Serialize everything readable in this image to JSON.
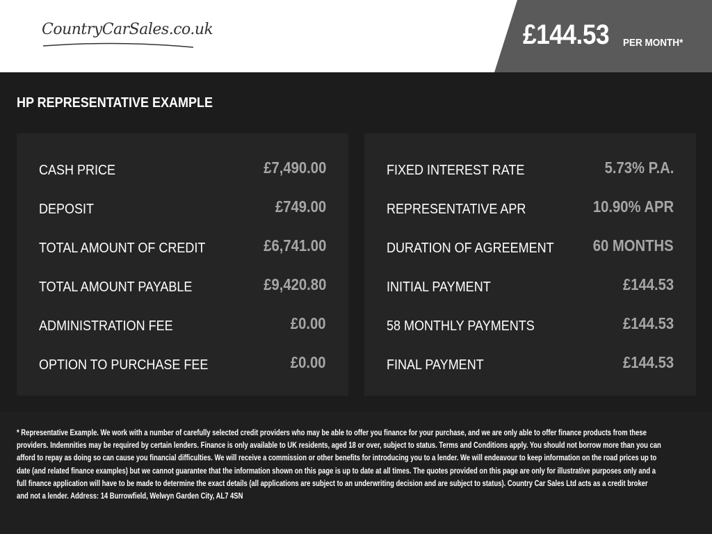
{
  "header": {
    "logo_text": "CountryCarSales.co.uk",
    "monthly_price": "£144.53",
    "per_month_label": "PER MONTH*"
  },
  "section_title": "HP REPRESENTATIVE EXAMPLE",
  "left_panel": [
    {
      "label": "CASH PRICE",
      "value": "£7,490.00"
    },
    {
      "label": "DEPOSIT",
      "value": "£749.00"
    },
    {
      "label": "TOTAL AMOUNT OF CREDIT",
      "value": "£6,741.00"
    },
    {
      "label": "TOTAL AMOUNT PAYABLE",
      "value": "£9,420.80"
    },
    {
      "label": "ADMINISTRATION FEE",
      "value": "£0.00"
    },
    {
      "label": "OPTION TO PURCHASE FEE",
      "value": "£0.00"
    }
  ],
  "right_panel": [
    {
      "label": "FIXED INTEREST RATE",
      "value": "5.73% P.A."
    },
    {
      "label": "REPRESENTATIVE APR",
      "value": "10.90% APR"
    },
    {
      "label": "DURATION OF AGREEMENT",
      "value": "60 MONTHS"
    },
    {
      "label": "INITIAL PAYMENT",
      "value": "£144.53"
    },
    {
      "label": "58 MONTHLY PAYMENTS",
      "value": "£144.53"
    },
    {
      "label": "FINAL PAYMENT",
      "value": "£144.53"
    }
  ],
  "disclaimer_lines": [
    "* Representative Example. We work with a number of carefully selected credit providers who may be able to offer you finance for your purchase, and we are only able to offer finance products from these",
    "providers. Indemnities may be required by certain lenders. Finance is only available to UK residents, aged 18 or over, subject to status. Terms and Conditions apply. You should not borrow more than you can",
    "afford to repay as doing so can cause you financial difficulties. We will receive a commission or other benefits for introducing you to a lender. We will endeavour to keep information on the road prices up to",
    "date (and related finance examples) but we cannot guarantee that the information shown on this page is up to date at all times. The quotes provided on this page are only for illustrative purposes only and a",
    "full finance application will have to be made to determine the exact details (all applications are subject to an underwriting decision and are subject to status). Country Car Sales Ltd acts as a credit broker",
    "and not a lender. Address: 14 Burrowfield, Welwyn Garden City,  AL7 4SN"
  ]
}
